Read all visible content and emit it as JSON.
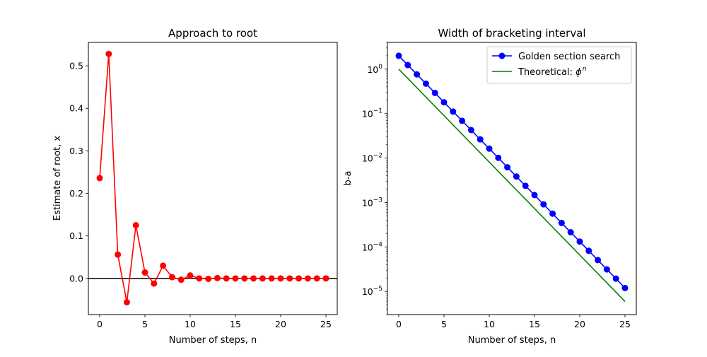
{
  "chart_data": [
    {
      "type": "line",
      "title": "Approach to root",
      "xlabel": "Number of steps, n",
      "ylabel": "Estimate of root, x",
      "xlim": [
        -1.25,
        26.25
      ],
      "ylim": [
        -0.085,
        0.555
      ],
      "xticks": [
        0,
        5,
        10,
        15,
        20,
        25
      ],
      "xtick_labels": [
        "0",
        "5",
        "10",
        "15",
        "20",
        "25"
      ],
      "yticks": [
        0.0,
        0.1,
        0.2,
        0.3,
        0.4,
        0.5
      ],
      "ytick_labels": [
        "0.0",
        "0.1",
        "0.2",
        "0.3",
        "0.4",
        "0.5"
      ],
      "grid": false,
      "hline": 0.0,
      "series": [
        {
          "color": "#ff0000",
          "marker": "circle",
          "x": [
            0,
            1,
            2,
            3,
            4,
            5,
            6,
            7,
            8,
            9,
            10,
            11,
            12,
            13,
            14,
            15,
            16,
            17,
            18,
            19,
            20,
            21,
            22,
            23,
            24,
            25
          ],
          "y": [
            0.236,
            0.528,
            0.056,
            -0.056,
            0.125,
            0.014,
            -0.012,
            0.03,
            0.003,
            -0.003,
            0.007,
            0.0,
            -0.001,
            0.001,
            0.0,
            0.0,
            0.0,
            0.0,
            0.0,
            0.0,
            0.0,
            0.0,
            0.0,
            0.0,
            0.0,
            0.0
          ]
        }
      ]
    },
    {
      "type": "line",
      "title": "Width of bracketing interval",
      "xlabel": "Number of steps, n",
      "ylabel": "b-a",
      "yscale": "log",
      "xlim": [
        -1.25,
        26.25
      ],
      "ylim": [
        3e-06,
        4.0
      ],
      "xticks": [
        0,
        5,
        10,
        15,
        20,
        25
      ],
      "xtick_labels": [
        "0",
        "5",
        "10",
        "15",
        "20",
        "25"
      ],
      "yticks_exp": [
        0,
        -1,
        -2,
        -3,
        -4,
        -5
      ],
      "ytick_base": "10",
      "grid": false,
      "legend_position": "top-right",
      "series": [
        {
          "name": "Golden section search",
          "color": "#0000ff",
          "marker": "circle",
          "x": [
            0,
            1,
            2,
            3,
            4,
            5,
            6,
            7,
            8,
            9,
            10,
            11,
            12,
            13,
            14,
            15,
            16,
            17,
            18,
            19,
            20,
            21,
            22,
            23,
            24,
            25
          ],
          "y": [
            2.0,
            1.236,
            0.764,
            0.472,
            0.292,
            0.18,
            0.111,
            0.0689,
            0.0426,
            0.0263,
            0.0163,
            0.0101,
            0.00621,
            0.00384,
            0.00237,
            0.00147,
            0.000906,
            0.00056,
            0.000346,
            0.000214,
            0.000132,
            8.17e-05,
            5.05e-05,
            3.12e-05,
            1.93e-05,
            1.19e-05
          ]
        },
        {
          "name": "Theoretical: ",
          "name_math": "ϕ",
          "name_sup": "n",
          "color": "#008000",
          "marker": "none",
          "x": [
            0,
            25
          ],
          "y": [
            1.0,
            5.93e-06
          ]
        }
      ]
    }
  ]
}
